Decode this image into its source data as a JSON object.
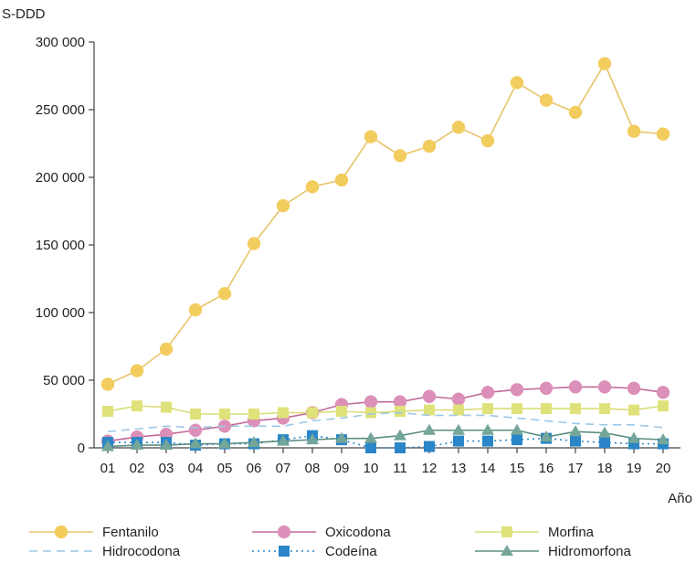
{
  "chart_data": {
    "type": "line",
    "ylabel": "S-DDD",
    "xlabel": "Año",
    "categories": [
      "01",
      "02",
      "03",
      "04",
      "05",
      "06",
      "07",
      "08",
      "09",
      "10",
      "11",
      "12",
      "13",
      "14",
      "15",
      "16",
      "17",
      "18",
      "19",
      "20"
    ],
    "yticks": [
      "0",
      "50 000",
      "100 000",
      "150 000",
      "200 000",
      "250 000",
      "300 000"
    ],
    "ylim": [
      0,
      300000
    ],
    "grid": false,
    "legend_position": "bottom",
    "series": [
      {
        "name": "Fentanilo",
        "color": "#f3cc5e",
        "line_color": "#e8c46a",
        "marker": "circle",
        "dash": "solid",
        "values": [
          47000,
          57000,
          73000,
          102000,
          114000,
          151000,
          179000,
          193000,
          198000,
          230000,
          216000,
          223000,
          237000,
          227000,
          270000,
          257000,
          248000,
          284000,
          234000,
          232000
        ]
      },
      {
        "name": "Oxicodona",
        "color": "#dc8fb8",
        "line_color": "#c06a96",
        "marker": "circle",
        "dash": "solid",
        "values": [
          5000,
          8000,
          10000,
          13000,
          16000,
          20000,
          22000,
          26000,
          32000,
          34000,
          34000,
          38000,
          36000,
          41000,
          43000,
          44000,
          45000,
          45000,
          44000,
          41000
        ]
      },
      {
        "name": "Morfina",
        "color": "#dfe27a",
        "line_color": "#d9dd78",
        "marker": "square",
        "dash": "solid",
        "values": [
          27000,
          31000,
          30000,
          25000,
          25000,
          25000,
          26000,
          26000,
          27000,
          26000,
          27000,
          28000,
          28000,
          29000,
          29000,
          29000,
          29000,
          29000,
          28000,
          31000
        ]
      },
      {
        "name": "Hidrocodona",
        "color": "#9ec7e6",
        "line_color": "#9ec7e6",
        "marker": "none",
        "dash": "dashed",
        "values": [
          12000,
          14000,
          16000,
          15000,
          16000,
          16000,
          16000,
          20000,
          22000,
          25000,
          26000,
          24000,
          24000,
          24000,
          22000,
          20000,
          18000,
          17000,
          17000,
          15000
        ]
      },
      {
        "name": "Codeína",
        "color": "#2a86c8",
        "line_color": "#2a86c8",
        "marker": "square",
        "dash": "dotted",
        "values": [
          4000,
          4000,
          4000,
          2000,
          3000,
          3000,
          6000,
          9000,
          6000,
          0,
          0,
          1000,
          5000,
          5000,
          6000,
          7000,
          5000,
          4000,
          3000,
          3000
        ]
      },
      {
        "name": "Hidromorfona",
        "color": "#74a69a",
        "line_color": "#5b8f83",
        "marker": "triangle",
        "dash": "solid",
        "values": [
          1000,
          2000,
          2000,
          3000,
          3000,
          4000,
          5000,
          6000,
          7000,
          7000,
          9000,
          13000,
          13000,
          13000,
          13000,
          8000,
          12000,
          11000,
          7000,
          6000
        ]
      }
    ]
  }
}
